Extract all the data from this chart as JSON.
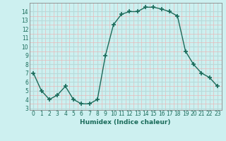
{
  "x": [
    0,
    1,
    2,
    3,
    4,
    5,
    6,
    7,
    8,
    9,
    10,
    11,
    12,
    13,
    14,
    15,
    16,
    17,
    18,
    19,
    20,
    21,
    22,
    23
  ],
  "y": [
    7.0,
    5.0,
    4.0,
    4.5,
    5.5,
    4.0,
    3.5,
    3.5,
    4.0,
    9.0,
    12.5,
    13.7,
    14.0,
    14.0,
    14.5,
    14.5,
    14.3,
    14.0,
    13.5,
    9.5,
    8.0,
    7.0,
    6.5,
    5.5
  ],
  "xlabel": "Humidex (Indice chaleur)",
  "ylim": [
    2.8,
    15.0
  ],
  "xlim": [
    -0.5,
    23.5
  ],
  "yticks": [
    3,
    4,
    5,
    6,
    7,
    8,
    9,
    10,
    11,
    12,
    13,
    14
  ],
  "xticks": [
    0,
    1,
    2,
    3,
    4,
    5,
    6,
    7,
    8,
    9,
    10,
    11,
    12,
    13,
    14,
    15,
    16,
    17,
    18,
    19,
    20,
    21,
    22,
    23
  ],
  "line_color": "#1a6b5a",
  "marker": "+",
  "marker_size": 4,
  "bg_color": "#cdf0f0",
  "grid_color_major": "#b8dada",
  "grid_color_minor": "#e8b8b8",
  "xlabel_color": "#1a6b5a",
  "tick_color": "#1a6b5a",
  "spine_color": "#888888"
}
